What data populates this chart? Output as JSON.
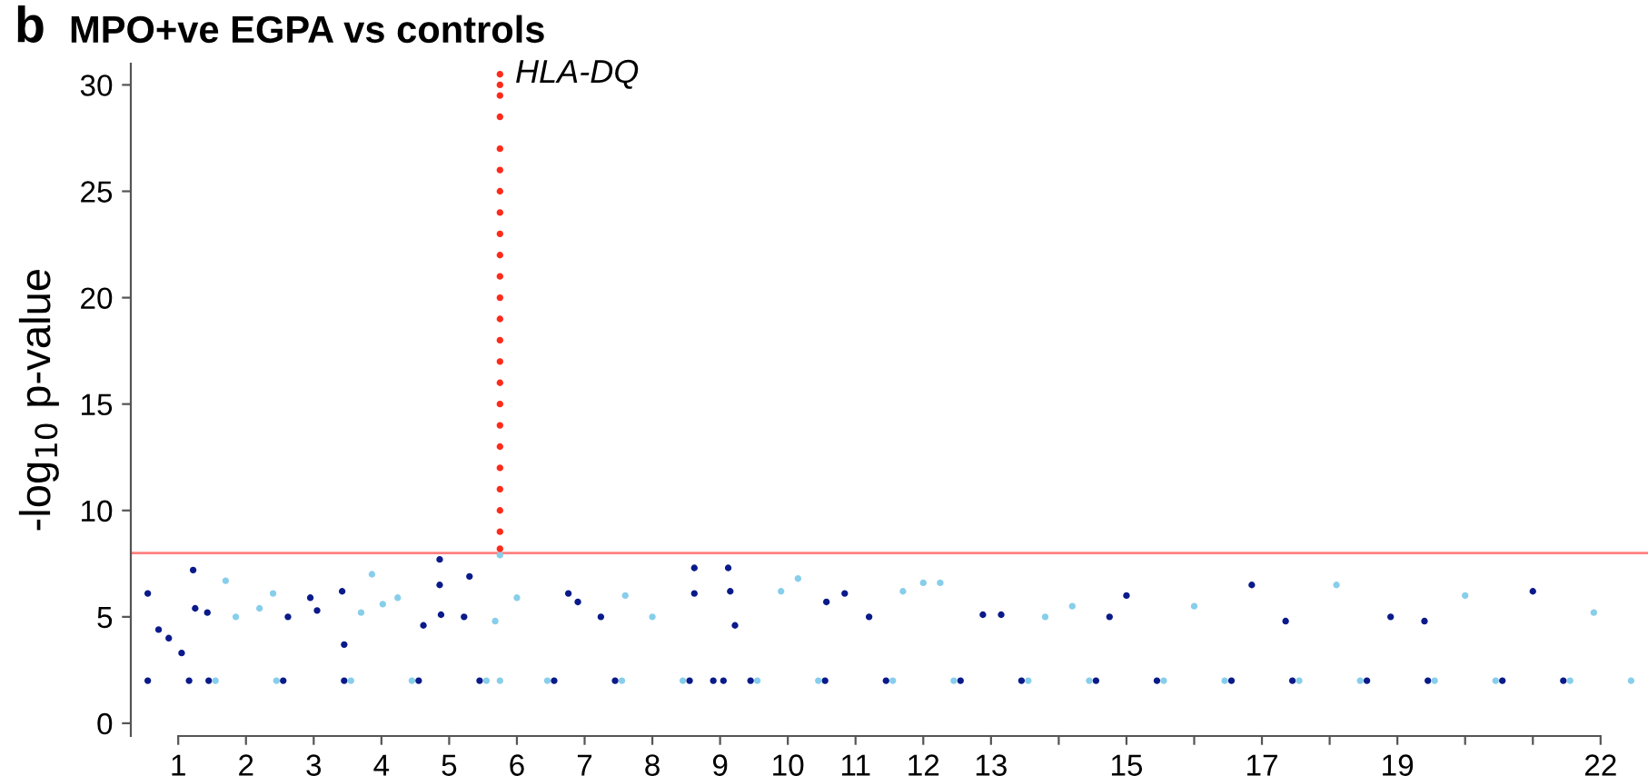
{
  "chart_data": {
    "type": "scatter",
    "title": "MPO+ve EGPA vs controls",
    "ylabel": "-log$_{10}$ p-value",
    "annotations": [
      "b",
      {
        "text": "HLA-DQ",
        "x": 5.75,
        "y": 30.5
      }
    ],
    "xlim": [
      0.3,
      22.7
    ],
    "ylim": [
      -0.6,
      31
    ],
    "yticks": [
      0,
      5,
      10,
      15,
      20,
      25,
      30
    ],
    "xticks": [
      1,
      2,
      3,
      4,
      5,
      6,
      7,
      8,
      9,
      10,
      11,
      12,
      13,
      {
        "value": 14,
        "label": null
      },
      15,
      {
        "value": 16,
        "label": null
      },
      17,
      {
        "value": 18,
        "label": null
      },
      19,
      {
        "value": 20,
        "label": null
      },
      {
        "value": 21,
        "label": null
      },
      22
    ],
    "marker": "circle",
    "grid": false,
    "legend": false,
    "ref_lines": [
      {
        "axis": "y",
        "value": 8,
        "color": "#ff8080",
        "line_style": "solid"
      }
    ],
    "series": [
      {
        "color": "#0a1a8a",
        "x": [
          0.55,
          0.55,
          0.71,
          0.86,
          1.05,
          1.22,
          1.25,
          1.43,
          1.45,
          1.16,
          2.55,
          2.62,
          2.95,
          3.05,
          3.42,
          3.45,
          3.45,
          4.55,
          4.62,
          4.86,
          4.86,
          4.88,
          5.3,
          5.22,
          5.45,
          6.55,
          6.76,
          6.9,
          7.24,
          7.45,
          8.55,
          8.62,
          8.62,
          8.9,
          9.05,
          9.12,
          9.15,
          9.22,
          9.45,
          10.55,
          10.57,
          10.84,
          11.2,
          11.45,
          12.55,
          12.88,
          13.15,
          13.45,
          14.55,
          14.75,
          15.0,
          15.45,
          16.55,
          16.85,
          17.35,
          17.45,
          18.55,
          18.9,
          19.4,
          19.45,
          20.55,
          21.0,
          21.45
        ],
        "values": [
          6.1,
          2,
          4.4,
          4.0,
          3.3,
          7.2,
          5.4,
          5.2,
          2,
          2,
          2,
          5.0,
          5.9,
          5.3,
          6.2,
          3.7,
          2,
          2,
          4.6,
          7.7,
          6.5,
          5.1,
          6.9,
          5.0,
          2,
          2,
          6.1,
          5.7,
          5.0,
          2,
          2,
          7.3,
          6.1,
          2,
          2,
          7.3,
          6.2,
          4.6,
          2,
          2,
          5.7,
          6.1,
          5.0,
          2,
          2,
          5.1,
          5.1,
          2,
          2,
          5.0,
          6.0,
          2,
          2,
          6.5,
          4.8,
          2,
          2,
          5.0,
          4.8,
          2,
          2,
          6.2,
          2
        ]
      },
      {
        "color": "#87ceeb",
        "x": [
          1.55,
          1.7,
          1.85,
          2.2,
          2.4,
          2.45,
          3.55,
          3.7,
          3.86,
          4.02,
          4.24,
          4.45,
          5.55,
          5.68,
          5.75,
          5.75,
          6.0,
          6.45,
          7.55,
          7.6,
          8.0,
          8.45,
          9.55,
          9.9,
          10.15,
          10.45,
          11.55,
          11.7,
          12.0,
          12.25,
          12.45,
          13.55,
          13.8,
          14.2,
          14.45,
          15.55,
          16.0,
          16.45,
          17.55,
          18.1,
          18.45,
          19.55,
          20.0,
          20.45,
          21.55,
          21.9,
          22.45
        ],
        "values": [
          2,
          6.7,
          5.0,
          5.4,
          6.1,
          2,
          2,
          5.2,
          7.0,
          5.6,
          5.9,
          2,
          2,
          4.8,
          7.9,
          2,
          5.9,
          2,
          2,
          6.0,
          5.0,
          2,
          2,
          6.2,
          6.8,
          2,
          2,
          6.2,
          6.6,
          6.6,
          2,
          2,
          5.0,
          5.5,
          2,
          2,
          5.5,
          2,
          2,
          6.5,
          2,
          2,
          6.0,
          2,
          2,
          5.2,
          2
        ]
      },
      {
        "color": "#ff2a1a",
        "x": [
          5.75,
          5.75,
          5.75,
          5.75,
          5.75,
          5.75,
          5.75,
          5.75,
          5.75,
          5.75,
          5.75,
          5.75,
          5.75,
          5.75,
          5.75,
          5.75,
          5.75,
          5.75,
          5.75,
          5.75,
          5.75,
          5.75,
          5.75,
          5.75
        ],
        "values": [
          8.2,
          9,
          10,
          11,
          12,
          13,
          14,
          15,
          16,
          17,
          18,
          19,
          20,
          21,
          22,
          23,
          24,
          25,
          26,
          27,
          28.5,
          29.5,
          30,
          30.5
        ]
      }
    ]
  }
}
